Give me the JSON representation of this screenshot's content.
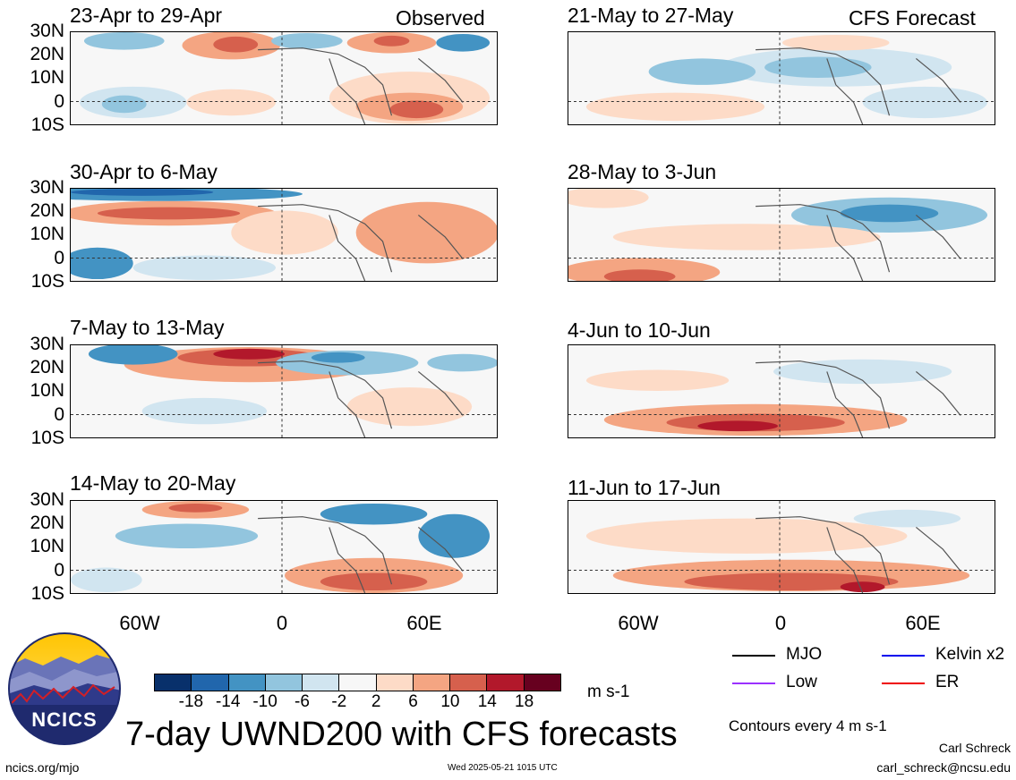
{
  "title": "7-day UWND200 with CFS forecasts",
  "observed_label": "Observed",
  "forecast_label": "CFS Forecast",
  "lat_labels": [
    "30N",
    "20N",
    "10N",
    "0",
    "10S"
  ],
  "lon_labels": [
    "60W",
    "0",
    "60E"
  ],
  "observed_periods": [
    "23-Apr to 29-Apr",
    "30-Apr to 6-May",
    "7-May to 13-May",
    "14-May to 20-May"
  ],
  "forecast_periods": [
    "21-May to 27-May",
    "28-May to 3-Jun",
    "4-Jun to 10-Jun",
    "11-Jun to 17-Jun"
  ],
  "colorbar": {
    "ticks": [
      "-18",
      "-14",
      "-10",
      "-6",
      "-2",
      "2",
      "6",
      "10",
      "14",
      "18"
    ],
    "colors": [
      "#08306b",
      "#2166ac",
      "#4393c3",
      "#92c5de",
      "#d1e5f0",
      "#f7f7f7",
      "#fddbc7",
      "#f4a582",
      "#d6604d",
      "#b2182b",
      "#67001f"
    ],
    "unit": "m s-1"
  },
  "legend": {
    "mjo": "MJO",
    "kelvin": "Kelvin x2",
    "low": "Low",
    "er": "ER",
    "colors": {
      "mjo": "#000000",
      "kelvin": "#0000ee",
      "low": "#9b30ff",
      "er": "#ee0000"
    }
  },
  "contour_note": "Contours every 4 m s-1",
  "logo_text": "NCICS",
  "footer": {
    "url": "ncics.org/mjo",
    "timestamp": "Wed 2025-05-21 1015 UTC",
    "author": "Carl Schreck",
    "email": "carl_schreck@ncsu.edu"
  }
}
